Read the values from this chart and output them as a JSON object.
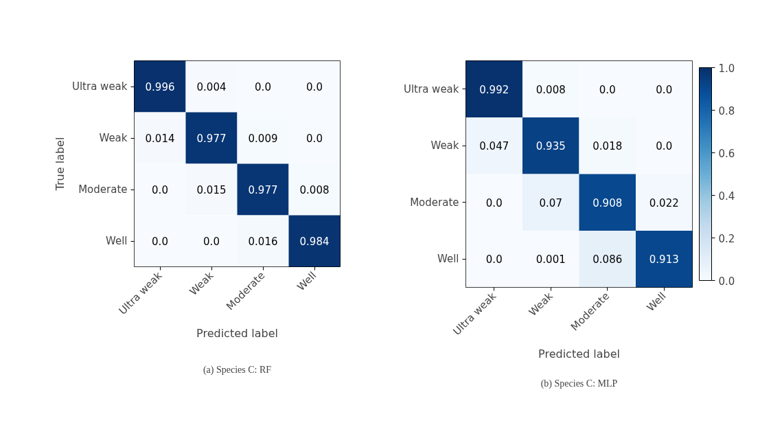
{
  "chart_data": [
    {
      "type": "heatmap",
      "categories": [
        "Ultra weak",
        "Weak",
        "Moderate",
        "Well"
      ],
      "y_categories": [
        "Ultra weak",
        "Weak",
        "Moderate",
        "Well"
      ],
      "cells": [
        [
          0.996,
          0.004,
          0.0,
          0.0
        ],
        [
          0.014,
          0.977,
          0.009,
          0.0
        ],
        [
          0.0,
          0.015,
          0.977,
          0.008
        ],
        [
          0.0,
          0.0,
          0.016,
          0.984
        ]
      ],
      "cell_labels": [
        [
          "0.996",
          "0.004",
          "0.0",
          "0.0"
        ],
        [
          "0.014",
          "0.977",
          "0.009",
          "0.0"
        ],
        [
          "0.0",
          "0.015",
          "0.977",
          "0.008"
        ],
        [
          "0.0",
          "0.0",
          "0.016",
          "0.984"
        ]
      ],
      "xlabel": "Predicted label",
      "ylabel": "True label",
      "annotations": [
        "(a) Species C: RF"
      ]
    },
    {
      "type": "heatmap",
      "categories": [
        "Ultra weak",
        "Weak",
        "Moderate",
        "Well"
      ],
      "y_categories": [
        "Ultra weak",
        "Weak",
        "Moderate",
        "Well"
      ],
      "cells": [
        [
          0.992,
          0.008,
          0.0,
          0.0
        ],
        [
          0.047,
          0.935,
          0.018,
          0.0
        ],
        [
          0.0,
          0.07,
          0.908,
          0.022
        ],
        [
          0.0,
          0.001,
          0.086,
          0.913
        ]
      ],
      "cell_labels": [
        [
          "0.992",
          "0.008",
          "0.0",
          "0.0"
        ],
        [
          "0.047",
          "0.935",
          "0.018",
          "0.0"
        ],
        [
          "0.0",
          "0.07",
          "0.908",
          "0.022"
        ],
        [
          "0.0",
          "0.001",
          "0.086",
          "0.913"
        ]
      ],
      "xlabel": "Predicted label",
      "clim": [
        0,
        1
      ],
      "cticks": [
        {
          "value": 0,
          "label": "0.0"
        },
        {
          "value": 0.2,
          "label": "0.2"
        },
        {
          "value": 0.4,
          "label": "0.4"
        },
        {
          "value": 0.6,
          "label": "0.6"
        },
        {
          "value": 0.8,
          "label": "0.8"
        },
        {
          "value": 1.0,
          "label": "1.0"
        }
      ],
      "annotations": [
        "(b) Species C: MLP"
      ]
    }
  ]
}
